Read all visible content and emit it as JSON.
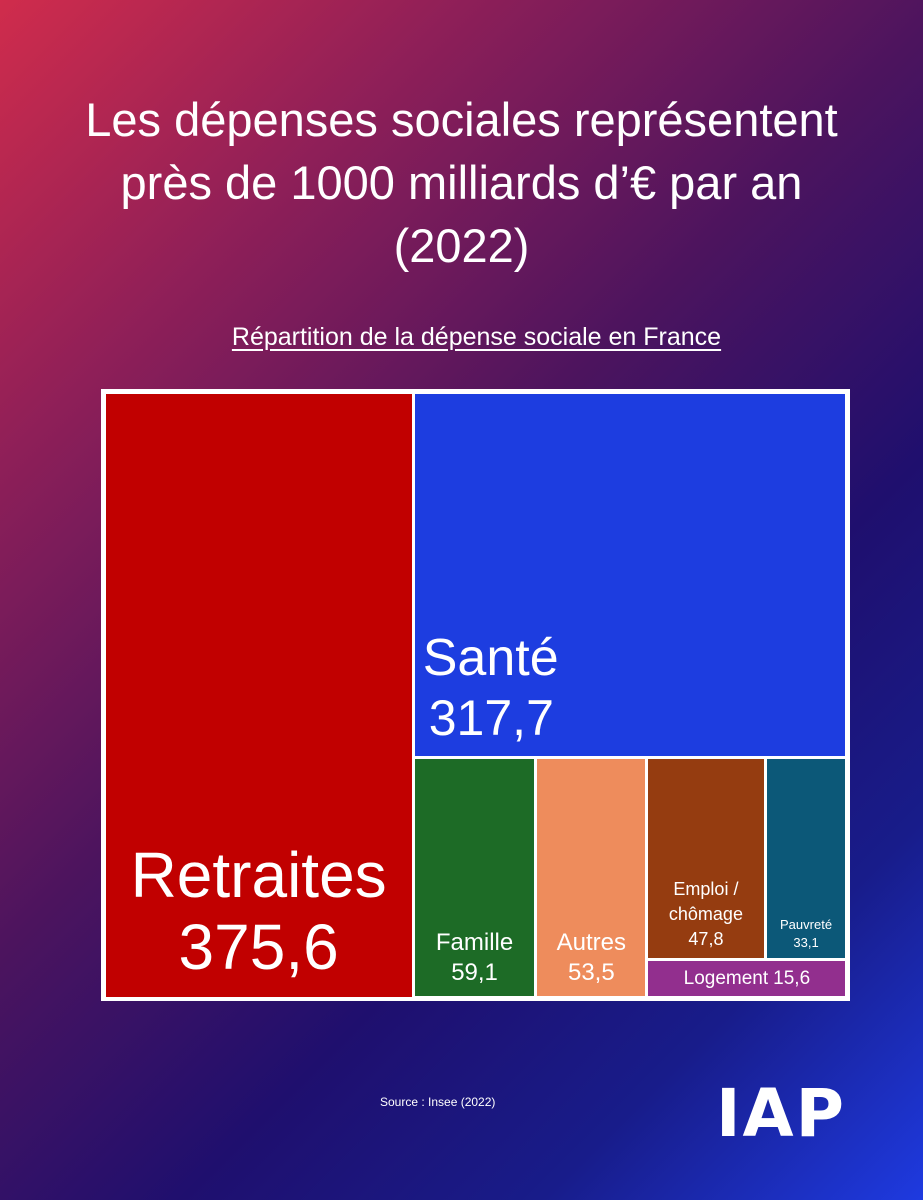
{
  "title": "Les dépenses sociales représentent près de 1000 milliards d’€ par an (2022)",
  "subtitle": "Répartition de la dépense sociale en France",
  "chart_data": {
    "type": "treemap",
    "items": [
      {
        "label": "Retraites",
        "value": 375.6,
        "display": "375,6",
        "color": "#c10000"
      },
      {
        "label": "Santé",
        "value": 317.7,
        "display": "317,7",
        "color": "#1d3de0"
      },
      {
        "label": "Famille",
        "value": 59.1,
        "display": "59,1",
        "color": "#1d6b26"
      },
      {
        "label": "Autres",
        "value": 53.5,
        "display": "53,5",
        "color": "#ee8c5c"
      },
      {
        "label": "Emploi / chômage",
        "value": 47.8,
        "display": "47,8",
        "color": "#953c10"
      },
      {
        "label": "Pauvreté",
        "value": 33.1,
        "display": "33,1",
        "color": "#0c5878"
      },
      {
        "label": "Logement",
        "value": 15.6,
        "display": "15,6",
        "color": "#922f8e"
      }
    ]
  },
  "source": "Source : Insee (2022)",
  "logo": "IAP"
}
